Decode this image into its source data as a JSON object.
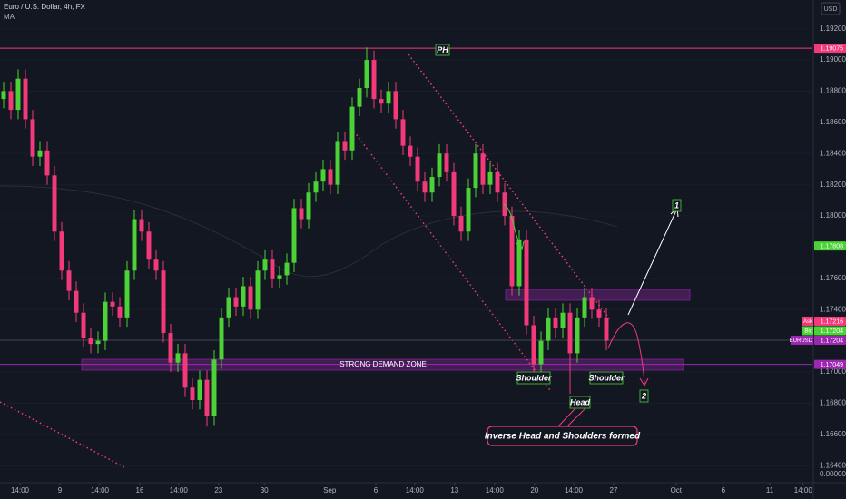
{
  "header": {
    "title": "Euro / U.S. Dollar, 4h, FX",
    "indicator": "MA",
    "currency": "USD"
  },
  "chart_data": {
    "type": "candlestick",
    "up_color": "#4cd137",
    "down_color": "#f23a7a",
    "xlim": [
      -0.5,
      111.375
    ],
    "ylim": [
      1.16291,
      1.19384
    ],
    "yticks": [
      {
        "value": 1.192,
        "label": "1.19200"
      },
      {
        "value": 1.19,
        "label": "1.19000"
      },
      {
        "value": 1.188,
        "label": "1.18800"
      },
      {
        "value": 1.186,
        "label": "1.18600"
      },
      {
        "value": 1.184,
        "label": "1.18400"
      },
      {
        "value": 1.182,
        "label": "1.18200"
      },
      {
        "value": 1.18,
        "label": "1.18000"
      },
      {
        "value": 1.176,
        "label": "1.17600"
      },
      {
        "value": 1.174,
        "label": "1.17400"
      },
      {
        "value": 1.17,
        "label": "1.17000"
      },
      {
        "value": 1.168,
        "label": "1.16800"
      },
      {
        "value": 1.166,
        "label": "1.16600"
      },
      {
        "value": 1.164,
        "label": "1.16400"
      }
    ],
    "extra_axis_label": "0.00000",
    "xticks": [
      {
        "value": 2.25,
        "label": "14:00"
      },
      {
        "value": 7.75,
        "label": "9"
      },
      {
        "value": 13.25,
        "label": "14:00"
      },
      {
        "value": 18.75,
        "label": "16"
      },
      {
        "value": 24.1,
        "label": "14:00"
      },
      {
        "value": 29.6,
        "label": "23"
      },
      {
        "value": 35.9,
        "label": "30"
      },
      {
        "value": 44.9,
        "label": "Sep"
      },
      {
        "value": 51.25,
        "label": "6"
      },
      {
        "value": 56.6,
        "label": "14:00"
      },
      {
        "value": 62.1,
        "label": "13"
      },
      {
        "value": 67.6,
        "label": "14:00"
      },
      {
        "value": 73.1,
        "label": "20"
      },
      {
        "value": 78.5,
        "label": "14:00"
      },
      {
        "value": 84,
        "label": "27"
      },
      {
        "value": 92.6,
        "label": "Oct"
      },
      {
        "value": 99.1,
        "label": "6"
      },
      {
        "value": 105.5,
        "label": "11"
      },
      {
        "value": 110.1,
        "label": "14:00"
      }
    ],
    "price_lines": [
      {
        "value": 1.19075,
        "color": "#f23a7a",
        "line": true
      },
      {
        "value": 1.17808,
        "color": "#4cd137",
        "line": false
      },
      {
        "tag": "Ask",
        "value": 1.17216,
        "color": "#f23a7a",
        "line": false
      },
      {
        "tag": "Bid",
        "value": 1.17204,
        "color": "#4cd137",
        "line": false
      },
      {
        "tag": "EURUSD",
        "value": 1.17204,
        "color": "#9c27b0",
        "line": true
      },
      {
        "value": 1.17049,
        "color": "#9c27b0",
        "line": true
      }
    ],
    "annotations": {
      "ph": "PH",
      "zone": "STRONG DEMAND ZONE",
      "left_shoulder": "Shoulder",
      "head": "Head",
      "right_shoulder": "Shoulder",
      "target1": "1",
      "target2": "2",
      "pattern": "Inverse Head and Shoulders formed"
    },
    "ohlc": [
      [
        1.1875,
        1.1886,
        1.1869,
        1.188
      ],
      [
        1.188,
        1.1886,
        1.1862,
        1.1868
      ],
      [
        1.1868,
        1.1894,
        1.1862,
        1.1888
      ],
      [
        1.1888,
        1.1894,
        1.1856,
        1.1862
      ],
      [
        1.1862,
        1.1868,
        1.1832,
        1.1838
      ],
      [
        1.1838,
        1.1848,
        1.1832,
        1.1842
      ],
      [
        1.1842,
        1.1848,
        1.182,
        1.1826
      ],
      [
        1.1826,
        1.1832,
        1.1784,
        1.179
      ],
      [
        1.179,
        1.1796,
        1.1759,
        1.1765
      ],
      [
        1.1765,
        1.1771,
        1.1746,
        1.1752
      ],
      [
        1.1752,
        1.1758,
        1.1732,
        1.1738
      ],
      [
        1.1738,
        1.1744,
        1.1716,
        1.1722
      ],
      [
        1.1722,
        1.1728,
        1.1712,
        1.1718
      ],
      [
        1.1718,
        1.1726,
        1.1712,
        1.172
      ],
      [
        1.172,
        1.1751,
        1.1714,
        1.1745
      ],
      [
        1.1745,
        1.1751,
        1.1736,
        1.1742
      ],
      [
        1.1742,
        1.1748,
        1.1729,
        1.1735
      ],
      [
        1.1735,
        1.1771,
        1.1729,
        1.1765
      ],
      [
        1.1765,
        1.1804,
        1.1759,
        1.1798
      ],
      [
        1.1798,
        1.1804,
        1.1784,
        1.179
      ],
      [
        1.179,
        1.1796,
        1.1766,
        1.1772
      ],
      [
        1.1772,
        1.1778,
        1.1759,
        1.1765
      ],
      [
        1.1765,
        1.1771,
        1.1719,
        1.1725
      ],
      [
        1.1725,
        1.1731,
        1.17,
        1.1706
      ],
      [
        1.1706,
        1.1718,
        1.17,
        1.1712
      ],
      [
        1.1712,
        1.1718,
        1.1684,
        1.169
      ],
      [
        1.169,
        1.1696,
        1.1676,
        1.1682
      ],
      [
        1.1682,
        1.1701,
        1.1676,
        1.1695
      ],
      [
        1.1695,
        1.1701,
        1.1665,
        1.1672
      ],
      [
        1.1672,
        1.1714,
        1.1666,
        1.1708
      ],
      [
        1.1708,
        1.1741,
        1.1702,
        1.1735
      ],
      [
        1.1735,
        1.1754,
        1.1729,
        1.1748
      ],
      [
        1.1748,
        1.1754,
        1.1736,
        1.1742
      ],
      [
        1.1742,
        1.1761,
        1.1736,
        1.1755
      ],
      [
        1.1755,
        1.1761,
        1.1734,
        1.174
      ],
      [
        1.174,
        1.1771,
        1.1734,
        1.1765
      ],
      [
        1.1765,
        1.1778,
        1.1759,
        1.1772
      ],
      [
        1.1772,
        1.1778,
        1.1754,
        1.176
      ],
      [
        1.176,
        1.1768,
        1.1754,
        1.1762
      ],
      [
        1.1762,
        1.1776,
        1.1756,
        1.177
      ],
      [
        1.177,
        1.1811,
        1.1764,
        1.1805
      ],
      [
        1.1805,
        1.1811,
        1.1792,
        1.1798
      ],
      [
        1.1798,
        1.1821,
        1.1792,
        1.1815
      ],
      [
        1.1815,
        1.1828,
        1.1809,
        1.1822
      ],
      [
        1.1822,
        1.1836,
        1.1816,
        1.183
      ],
      [
        1.183,
        1.1836,
        1.1814,
        1.182
      ],
      [
        1.182,
        1.1854,
        1.1814,
        1.1848
      ],
      [
        1.1848,
        1.1854,
        1.1836,
        1.1842
      ],
      [
        1.1842,
        1.1876,
        1.1836,
        1.187
      ],
      [
        1.187,
        1.1888,
        1.1864,
        1.1882
      ],
      [
        1.1882,
        1.1908,
        1.1876,
        1.19
      ],
      [
        1.19,
        1.1906,
        1.1869,
        1.1875
      ],
      [
        1.1875,
        1.1881,
        1.1866,
        1.1872
      ],
      [
        1.1872,
        1.1886,
        1.1866,
        1.188
      ],
      [
        1.188,
        1.1886,
        1.1856,
        1.1862
      ],
      [
        1.1862,
        1.1868,
        1.1839,
        1.1845
      ],
      [
        1.1845,
        1.1851,
        1.1832,
        1.1838
      ],
      [
        1.1838,
        1.1844,
        1.1816,
        1.1822
      ],
      [
        1.1822,
        1.1828,
        1.1809,
        1.1815
      ],
      [
        1.1815,
        1.1831,
        1.1809,
        1.1825
      ],
      [
        1.1825,
        1.1846,
        1.1819,
        1.184
      ],
      [
        1.184,
        1.1846,
        1.1822,
        1.1828
      ],
      [
        1.1828,
        1.1834,
        1.1794,
        1.18
      ],
      [
        1.18,
        1.1806,
        1.1784,
        1.179
      ],
      [
        1.179,
        1.1824,
        1.1784,
        1.1818
      ],
      [
        1.1818,
        1.1846,
        1.1812,
        1.184
      ],
      [
        1.184,
        1.1846,
        1.1814,
        1.182
      ],
      [
        1.182,
        1.1834,
        1.1814,
        1.1828
      ],
      [
        1.1828,
        1.1834,
        1.1809,
        1.1815
      ],
      [
        1.1815,
        1.1821,
        1.1794,
        1.18
      ],
      [
        1.18,
        1.1806,
        1.1749,
        1.1755
      ],
      [
        1.1755,
        1.1791,
        1.1749,
        1.1785
      ],
      [
        1.1785,
        1.1791,
        1.1724,
        1.173
      ],
      [
        1.173,
        1.1736,
        1.17,
        1.1705
      ],
      [
        1.1705,
        1.1726,
        1.1699,
        1.172
      ],
      [
        1.172,
        1.1741,
        1.1714,
        1.1735
      ],
      [
        1.1735,
        1.1741,
        1.1722,
        1.1728
      ],
      [
        1.1728,
        1.1744,
        1.1722,
        1.1738
      ],
      [
        1.1738,
        1.1744,
        1.1686,
        1.1712
      ],
      [
        1.1712,
        1.1741,
        1.1706,
        1.1735
      ],
      [
        1.1735,
        1.1754,
        1.1729,
        1.1748
      ],
      [
        1.1748,
        1.1754,
        1.1734,
        1.174
      ],
      [
        1.174,
        1.1746,
        1.1729,
        1.1735
      ],
      [
        1.1735,
        1.1741,
        1.1714,
        1.172
      ]
    ]
  }
}
